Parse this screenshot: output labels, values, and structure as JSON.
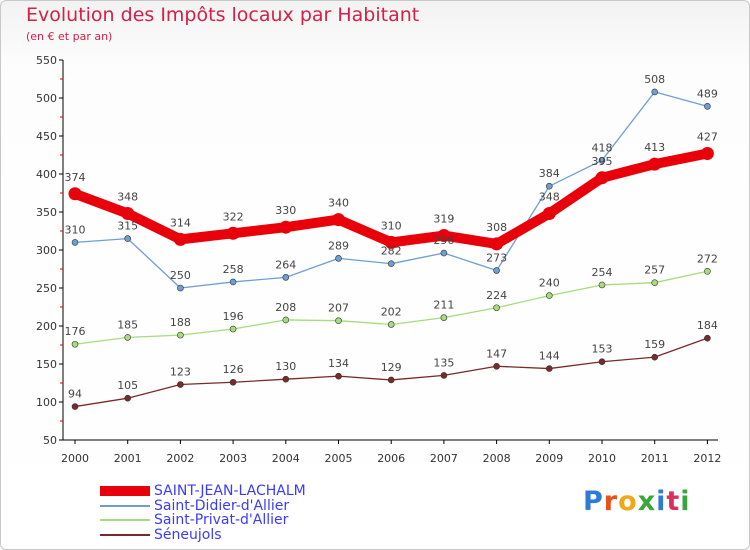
{
  "chart_data": {
    "type": "line",
    "title": "Evolution des Impôts locaux par Habitant",
    "subtitle": "(en € et par an)",
    "x": [
      "2000",
      "2001",
      "2002",
      "2003",
      "2004",
      "2005",
      "2006",
      "2007",
      "2008",
      "2009",
      "2010",
      "2011",
      "2012"
    ],
    "ylim": [
      50,
      550
    ],
    "yticks": [
      50,
      100,
      150,
      200,
      250,
      300,
      350,
      400,
      450,
      500,
      550
    ],
    "grid": false,
    "legend_position": "bottom-left",
    "series": [
      {
        "name": "SAINT-JEAN-LACHALM",
        "color": "#e8000b",
        "values": [
          374,
          348,
          314,
          322,
          330,
          340,
          310,
          319,
          308,
          348,
          395,
          413,
          427
        ]
      },
      {
        "name": "Saint-Didier-d'Allier",
        "color": "#6f9ed3",
        "values": [
          310,
          315,
          250,
          258,
          264,
          289,
          282,
          296,
          273,
          384,
          418,
          508,
          489
        ]
      },
      {
        "name": "Saint-Privat-d'Allier",
        "color": "#a6dc7a",
        "values": [
          176,
          185,
          188,
          196,
          208,
          207,
          202,
          211,
          224,
          240,
          254,
          257,
          272
        ]
      },
      {
        "name": "Séneujols",
        "color": "#7a2a2a",
        "values": [
          94,
          105,
          123,
          126,
          130,
          134,
          129,
          135,
          147,
          144,
          153,
          159,
          184
        ]
      }
    ]
  },
  "logo_text": "Proxiti",
  "colors": {
    "title": "#d0214b",
    "legend_text": "#3b3bff",
    "axis": "#000000",
    "minor_tick": "#e8000b"
  }
}
